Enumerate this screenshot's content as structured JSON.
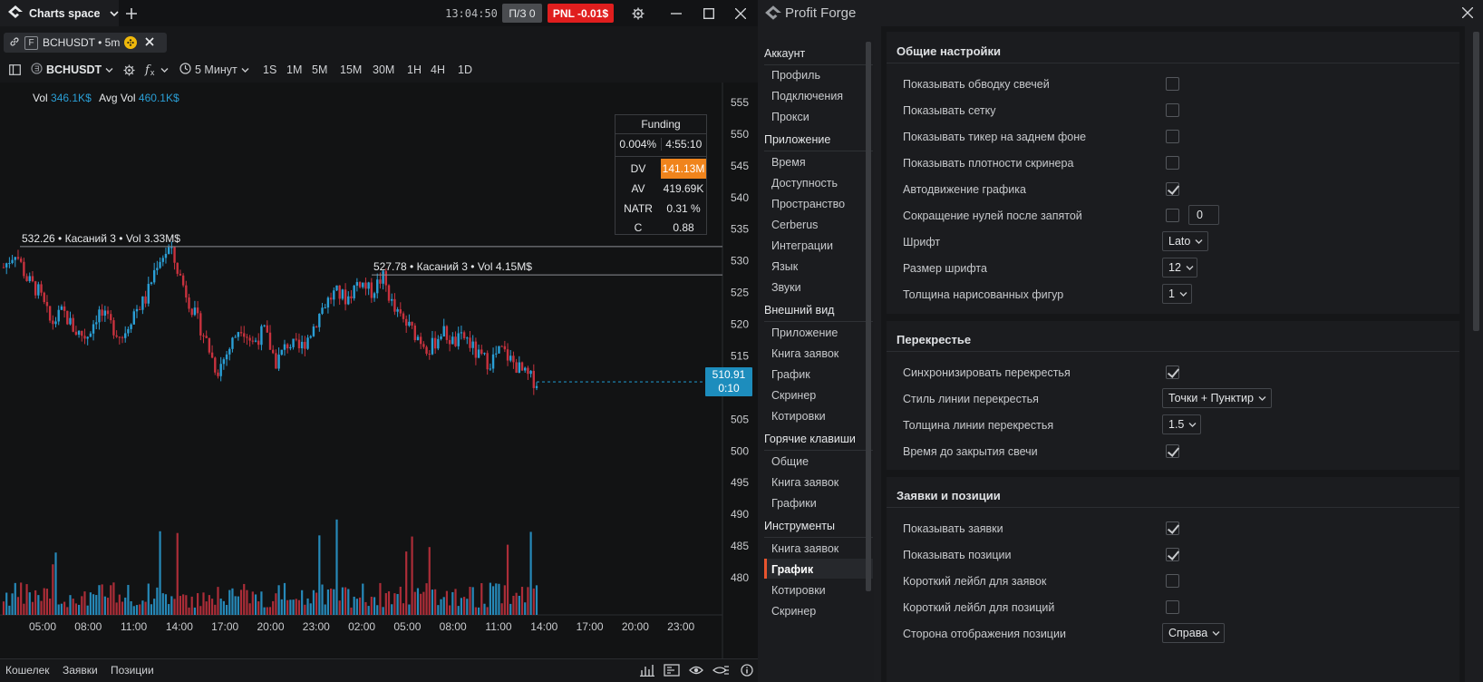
{
  "left_window": {
    "tab_title": "Charts space",
    "clock": "13:04:50",
    "pz_badge": "П/З 0",
    "pnl_badge": "PNL -0.01$",
    "colors": {
      "pnl_bg": "#e01e1e",
      "pz_bg": "#4a4c50",
      "up": "#2a9fd6",
      "down": "#c8323e",
      "accent": "#1d8dbd",
      "dv_bg": "#f0841c"
    }
  },
  "symbol_tab": {
    "f_badge": "F",
    "label": "BCHUSDT • 5m"
  },
  "toolbar": {
    "symbol": "BCHUSDT",
    "interval": "5 Минут",
    "timeframes": [
      "1S",
      "1M",
      "5M",
      "15M",
      "30M",
      "1H",
      "4H",
      "1D"
    ]
  },
  "volume_stats": {
    "vol_label": "Vol",
    "vol_value": "346.1K$",
    "avg_label": "Avg Vol",
    "avg_value": "460.1K$"
  },
  "funding": {
    "title": "Funding",
    "rate": "0.004%",
    "countdown": "4:55:10",
    "rows": [
      {
        "k": "DV",
        "v": "141.13M"
      },
      {
        "k": "AV",
        "v": "419.69K"
      },
      {
        "k": "NATR",
        "v": "0.31 %"
      },
      {
        "k": "C",
        "v": "0.88"
      }
    ]
  },
  "levels": [
    {
      "price": 532.26,
      "label": "532.26 • Касаний 3 • Vol 3.33M$"
    },
    {
      "price": 527.78,
      "label": "527.78 • Касаний 3 • Vol 4.15M$"
    }
  ],
  "price_label": {
    "price": "510.91",
    "timer": "0:10"
  },
  "chart_data": {
    "type": "candlestick",
    "symbol": "BCHUSDT",
    "interval": "5m",
    "y_ticks": [
      555,
      550,
      545,
      540,
      535,
      530,
      525,
      520,
      515,
      510,
      505,
      500,
      495,
      490,
      485,
      480
    ],
    "x_ticks": [
      "05:00",
      "08:00",
      "11:00",
      "14:00",
      "17:00",
      "20:00",
      "23:00",
      "02:00",
      "05:00",
      "08:00",
      "11:00",
      "14:00",
      "17:00",
      "20:00",
      "23:00"
    ],
    "ylim": [
      477,
      558
    ],
    "last_price": 510.91,
    "close_path": [
      [
        "04:00",
        529
      ],
      [
        "04:30",
        531.5
      ],
      [
        "05:15",
        527
      ],
      [
        "06:00",
        525
      ],
      [
        "06:45",
        520
      ],
      [
        "07:30",
        522
      ],
      [
        "08:15",
        519
      ],
      [
        "09:00",
        518
      ],
      [
        "09:45",
        522
      ],
      [
        "10:30",
        520
      ],
      [
        "11:15",
        518
      ],
      [
        "12:00",
        522
      ],
      [
        "12:45",
        524
      ],
      [
        "13:30",
        530
      ],
      [
        "14:00",
        532
      ],
      [
        "14:45",
        527
      ],
      [
        "15:30",
        522
      ],
      [
        "16:15",
        518
      ],
      [
        "17:00",
        512.5
      ],
      [
        "17:45",
        516
      ],
      [
        "18:30",
        520
      ],
      [
        "19:15",
        517
      ],
      [
        "20:00",
        519
      ],
      [
        "20:45",
        514
      ],
      [
        "21:30",
        517
      ],
      [
        "22:15",
        516
      ],
      [
        "23:00",
        519
      ],
      [
        "23:45",
        523
      ],
      [
        "00:30",
        525
      ],
      [
        "01:15",
        524
      ],
      [
        "02:00",
        527
      ],
      [
        "02:45",
        525
      ],
      [
        "03:30",
        527.5
      ],
      [
        "04:15",
        522
      ],
      [
        "05:00",
        520
      ],
      [
        "05:45",
        518
      ],
      [
        "06:30",
        516
      ],
      [
        "07:15",
        519
      ],
      [
        "08:00",
        517
      ],
      [
        "08:45",
        518
      ],
      [
        "09:30",
        515
      ],
      [
        "10:15",
        514
      ],
      [
        "11:00",
        516
      ],
      [
        "11:45",
        514
      ],
      [
        "12:30",
        512
      ],
      [
        "13:05",
        510.91
      ]
    ]
  },
  "bottom_tabs": [
    "Кошелек",
    "Заявки",
    "Позиции"
  ],
  "settings": {
    "window_title": "Profit Forge",
    "nav": [
      {
        "category": "Аккаунт",
        "items": [
          "Профиль",
          "Подключения",
          "Прокси"
        ]
      },
      {
        "category": "Приложение",
        "items": [
          "Время",
          "Доступность",
          "Пространство",
          "Cerberus",
          "Интеграции",
          "Язык",
          "Звуки"
        ]
      },
      {
        "category": "Внешний вид",
        "items": [
          "Приложение",
          "Книга заявок",
          "График",
          "Скринер",
          "Котировки"
        ]
      },
      {
        "category": "Горячие клавиши",
        "items": [
          "Общие",
          "Книга заявок",
          "Графики"
        ]
      },
      {
        "category": "Инструменты",
        "items": [
          "Книга заявок",
          "График",
          "Котировки",
          "Скринер"
        ]
      }
    ],
    "active_nav": "Инструменты / График",
    "sections": [
      {
        "title": "Общие настройки",
        "rows": [
          {
            "label": "Показывать обводку свечей",
            "type": "checkbox",
            "checked": false
          },
          {
            "label": "Показывать сетку",
            "type": "checkbox",
            "checked": false
          },
          {
            "label": "Показывать тикер на заднем фоне",
            "type": "checkbox",
            "checked": false
          },
          {
            "label": "Показывать плотности скринера",
            "type": "checkbox",
            "checked": false
          },
          {
            "label": "Автодвижение графика",
            "type": "checkbox",
            "checked": true
          },
          {
            "label": "Сокращение нулей после запятой",
            "type": "checkbox_number",
            "checked": false,
            "value": "0"
          },
          {
            "label": "Шрифт",
            "type": "select",
            "value": "Lato"
          },
          {
            "label": "Размер шрифта",
            "type": "select",
            "value": "12"
          },
          {
            "label": "Толщина нарисованных фигур",
            "type": "select",
            "value": "1"
          }
        ]
      },
      {
        "title": "Перекрестье",
        "rows": [
          {
            "label": "Синхронизировать перекрестья",
            "type": "checkbox",
            "checked": true
          },
          {
            "label": "Стиль линии перекрестья",
            "type": "select",
            "value": "Точки + Пунктир"
          },
          {
            "label": "Толщина линии перекрестья",
            "type": "select",
            "value": "1.5"
          },
          {
            "label": "Время до закрытия свечи",
            "type": "checkbox",
            "checked": true
          }
        ]
      },
      {
        "title": "Заявки и позиции",
        "rows": [
          {
            "label": "Показывать заявки",
            "type": "checkbox",
            "checked": true
          },
          {
            "label": "Показывать позиции",
            "type": "checkbox",
            "checked": true
          },
          {
            "label": "Короткий лейбл для заявок",
            "type": "checkbox",
            "checked": false
          },
          {
            "label": "Короткий лейбл для позиций",
            "type": "checkbox",
            "checked": false
          },
          {
            "label": "Сторона отображения позиции",
            "type": "select",
            "value": "Справа"
          }
        ]
      }
    ]
  }
}
